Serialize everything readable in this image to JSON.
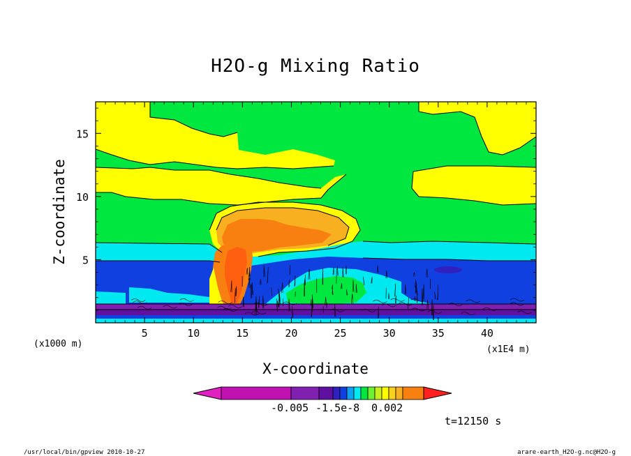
{
  "chart_data": {
    "type": "heatmap",
    "title": "H2O-g Mixing Ratio",
    "xlabel": "X-coordinate",
    "ylabel": "Z-coordinate",
    "x_unit_label": "(x1E4 m)",
    "y_unit_label": "(x1000 m)",
    "xlim": [
      0,
      45
    ],
    "ylim": [
      0,
      17.5
    ],
    "x_ticks": [
      5,
      10,
      15,
      20,
      25,
      30,
      35,
      40
    ],
    "y_ticks": [
      5,
      10,
      15
    ],
    "colorbar": {
      "labels": [
        "-0.005",
        "-1.5e-8",
        "0.002"
      ],
      "colors": [
        "#e020c0",
        "#c010b0",
        "#8020b0",
        "#6010a0",
        "#3020c0",
        "#1040e0",
        "#10a0f0",
        "#00e8f0",
        "#00e840",
        "#70f030",
        "#c8f020",
        "#ffff00",
        "#f8d020",
        "#f8b020",
        "#f88010",
        "#ff2020"
      ]
    },
    "annotation": "t=12150 s",
    "footer_left": "/usr/local/bin/gpview  2010-10-27",
    "footer_right": "arare-earth_H2O-g.nc@H2O-g"
  }
}
